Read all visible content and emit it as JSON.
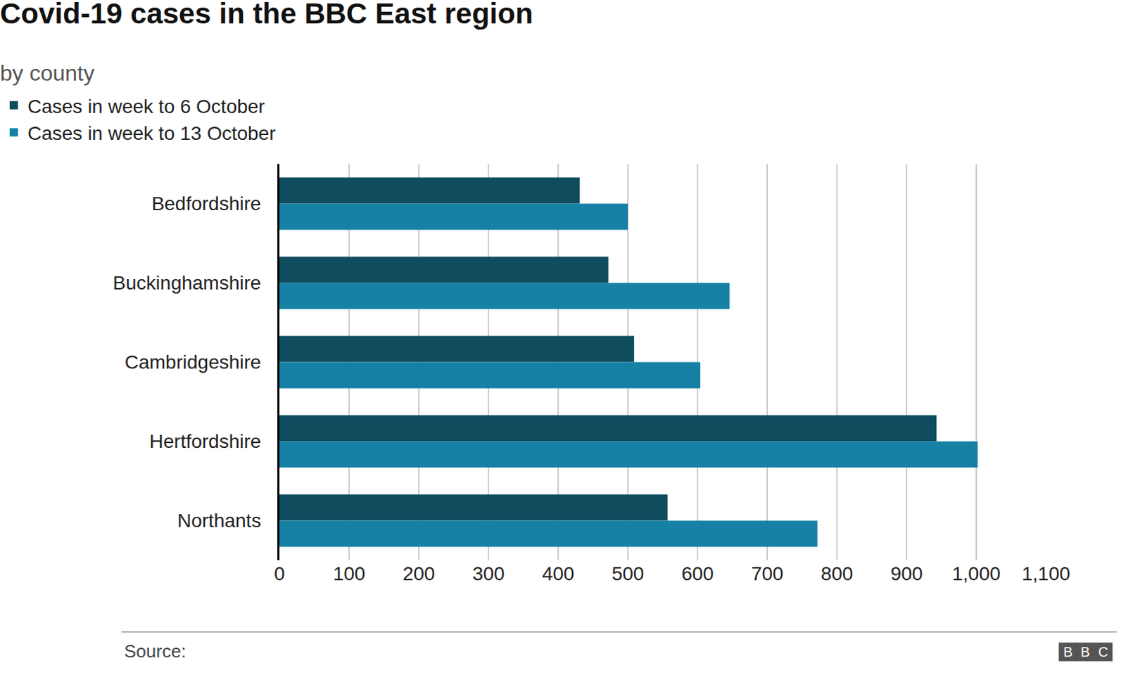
{
  "chart_data": {
    "type": "bar",
    "title": "Covid-19 cases in the BBC East region",
    "subtitle": "by county",
    "source": "Source:",
    "logo": "BBC",
    "orientation": "horizontal",
    "categories": [
      "Bedfordshire",
      "Buckinghamshire",
      "Cambridgeshire",
      "Hertfordshire",
      "Northants"
    ],
    "series": [
      {
        "name": "Cases in week to 6 October",
        "color": "#0e4c5e",
        "values": [
          431,
          472,
          509,
          943,
          557
        ]
      },
      {
        "name": "Cases in week to 13 October",
        "color": "#1681a4",
        "values": [
          500,
          646,
          604,
          1002,
          772
        ]
      }
    ],
    "xlim": [
      0,
      1100
    ],
    "xticks": [
      0,
      100,
      200,
      300,
      400,
      500,
      600,
      700,
      800,
      900,
      {
        "value": 1000,
        "label": "1,000"
      },
      {
        "value": 1100,
        "label": "1,100"
      }
    ],
    "grid": true,
    "legend": "top left"
  }
}
